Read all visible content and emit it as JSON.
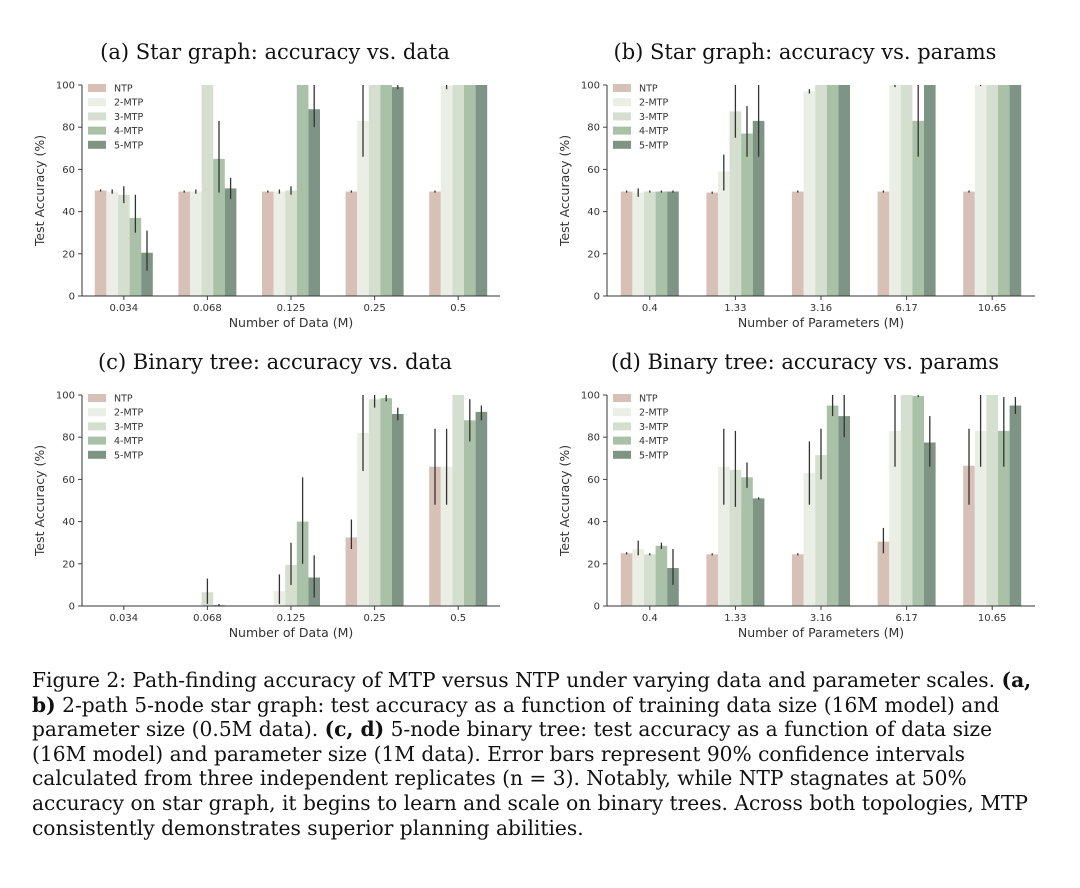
{
  "colors": [
    "#d7c0b6",
    "#eaeee4",
    "#d4dfcf",
    "#a9c1a7",
    "#7e9485"
  ],
  "chart_data": [
    {
      "id": "a",
      "type": "bar",
      "title": "(a) Star graph: accuracy vs. data",
      "xlabel": "Number of Data (M)",
      "ylabel": "Test Accuracy (%)",
      "ylim": [
        0,
        100
      ],
      "yticks": [
        0,
        20,
        40,
        60,
        80,
        100
      ],
      "legend": "top-left",
      "categories": [
        "0.034",
        "0.068",
        "0.125",
        "0.25",
        "0.5"
      ],
      "series": [
        {
          "name": "NTP",
          "values": [
            50,
            49.5,
            49.5,
            49.5,
            49.5
          ],
          "err_low": [
            49.5,
            49,
            49,
            49,
            49
          ],
          "err_high": [
            50.5,
            50,
            50,
            50,
            50
          ]
        },
        {
          "name": "2-MTP",
          "values": [
            49.5,
            49.5,
            49.5,
            83,
            99.5
          ],
          "err_low": [
            48.5,
            48.5,
            48.5,
            66,
            98
          ],
          "err_high": [
            50.5,
            50.5,
            50.5,
            100,
            100
          ]
        },
        {
          "name": "3-MTP",
          "values": [
            48,
            100,
            50,
            100,
            100
          ],
          "err_low": [
            44,
            100,
            48,
            100,
            100
          ],
          "err_high": [
            52,
            100,
            52,
            100,
            100
          ]
        },
        {
          "name": "4-MTP",
          "values": [
            37,
            65,
            100,
            100,
            100
          ],
          "err_low": [
            30,
            49,
            100,
            100,
            100
          ],
          "err_high": [
            48,
            83,
            100,
            100,
            100
          ]
        },
        {
          "name": "5-MTP",
          "values": [
            20.5,
            51,
            88.5,
            99,
            100
          ],
          "err_low": [
            12,
            46,
            80,
            98,
            100
          ],
          "err_high": [
            31,
            56,
            100,
            100,
            100
          ]
        }
      ]
    },
    {
      "id": "b",
      "type": "bar",
      "title": "(b) Star graph: accuracy vs. params",
      "xlabel": "Number of Parameters (M)",
      "ylabel": "Test Accuracy (%)",
      "ylim": [
        0,
        100
      ],
      "yticks": [
        0,
        20,
        40,
        60,
        80,
        100
      ],
      "legend": "top-left",
      "categories": [
        "0.4",
        "1.33",
        "3.16",
        "6.17",
        "10.65"
      ],
      "series": [
        {
          "name": "NTP",
          "values": [
            49.5,
            49,
            49.5,
            49.5,
            49.5
          ],
          "err_low": [
            49,
            48.5,
            49,
            49,
            49
          ],
          "err_high": [
            50,
            49.5,
            50,
            50,
            50
          ]
        },
        {
          "name": "2-MTP",
          "values": [
            49,
            59,
            97,
            100,
            100
          ],
          "err_low": [
            47,
            50,
            96,
            99,
            99.5
          ],
          "err_high": [
            51,
            67,
            98,
            100,
            100
          ]
        },
        {
          "name": "3-MTP",
          "values": [
            49.5,
            87.5,
            100,
            100,
            100
          ],
          "err_low": [
            49,
            75,
            100,
            100,
            100
          ],
          "err_high": [
            50,
            100,
            100,
            100,
            100
          ]
        },
        {
          "name": "4-MTP",
          "values": [
            49.5,
            77,
            100,
            83,
            100
          ],
          "err_low": [
            49,
            66,
            100,
            66,
            100
          ],
          "err_high": [
            50,
            90,
            100,
            100,
            100
          ]
        },
        {
          "name": "5-MTP",
          "values": [
            49.5,
            83,
            100,
            100,
            100
          ],
          "err_low": [
            49,
            66,
            100,
            100,
            100
          ],
          "err_high": [
            50,
            100,
            100,
            100,
            100
          ]
        }
      ]
    },
    {
      "id": "c",
      "type": "bar",
      "title": "(c) Binary tree: accuracy vs. data",
      "xlabel": "Number of Data (M)",
      "ylabel": "Test Accuracy (%)",
      "ylim": [
        0,
        100
      ],
      "yticks": [
        0,
        20,
        40,
        60,
        80,
        100
      ],
      "legend": "top-left",
      "categories": [
        "0.034",
        "0.068",
        "0.125",
        "0.25",
        "0.5"
      ],
      "series": [
        {
          "name": "NTP",
          "values": [
            0,
            0,
            0,
            32.5,
            66
          ],
          "err_low": [
            0,
            0,
            0,
            27,
            48
          ],
          "err_high": [
            0,
            0,
            0,
            41,
            84
          ]
        },
        {
          "name": "2-MTP",
          "values": [
            0,
            0,
            7,
            82,
            66
          ],
          "err_low": [
            0,
            0,
            1,
            64,
            48
          ],
          "err_high": [
            0,
            0,
            15,
            100,
            84
          ]
        },
        {
          "name": "3-MTP",
          "values": [
            0,
            6.5,
            19.5,
            98,
            100
          ],
          "err_low": [
            0,
            1,
            10,
            94,
            100
          ],
          "err_high": [
            0,
            13,
            30,
            100,
            100
          ]
        },
        {
          "name": "4-MTP",
          "values": [
            0,
            0.5,
            40,
            98.5,
            88
          ],
          "err_low": [
            0,
            0,
            20,
            97,
            78
          ],
          "err_high": [
            0,
            1,
            61,
            100,
            98
          ]
        },
        {
          "name": "5-MTP",
          "values": [
            0,
            0,
            13.5,
            91,
            92
          ],
          "err_low": [
            0,
            0,
            4,
            88,
            88
          ],
          "err_high": [
            0,
            0,
            24,
            94,
            95
          ]
        }
      ]
    },
    {
      "id": "d",
      "type": "bar",
      "title": "(d) Binary tree: accuracy vs. params",
      "xlabel": "Number of Parameters (M)",
      "ylabel": "Test Accuracy (%)",
      "ylim": [
        0,
        100
      ],
      "yticks": [
        0,
        20,
        40,
        60,
        80,
        100
      ],
      "legend": "top-left",
      "categories": [
        "0.4",
        "1.33",
        "3.16",
        "6.17",
        "10.65"
      ],
      "series": [
        {
          "name": "NTP",
          "values": [
            25,
            24.5,
            24.5,
            30.5,
            66.5
          ],
          "err_low": [
            24.5,
            24,
            24,
            25,
            48
          ],
          "err_high": [
            25.5,
            25,
            25,
            37,
            84
          ]
        },
        {
          "name": "2-MTP",
          "values": [
            27,
            66,
            63,
            83,
            83
          ],
          "err_low": [
            24,
            48,
            48,
            66,
            66
          ],
          "err_high": [
            31,
            84,
            78,
            100,
            100
          ]
        },
        {
          "name": "3-MTP",
          "values": [
            24.5,
            64.5,
            71.5,
            100,
            100
          ],
          "err_low": [
            24,
            47,
            60,
            100,
            100
          ],
          "err_high": [
            25,
            83,
            84,
            100,
            100
          ]
        },
        {
          "name": "4-MTP",
          "values": [
            28.5,
            61,
            95,
            99.5,
            83
          ],
          "err_low": [
            27,
            56,
            90,
            99,
            66
          ],
          "err_high": [
            30,
            68,
            100,
            100,
            99
          ]
        },
        {
          "name": "5-MTP",
          "values": [
            18,
            51,
            90,
            77.5,
            95
          ],
          "err_low": [
            10,
            50.5,
            80,
            66,
            91
          ],
          "err_high": [
            27,
            51.5,
            100,
            90,
            99
          ]
        }
      ]
    }
  ],
  "caption": {
    "lead": "Figure 2: Path-finding accuracy of MTP versus NTP under varying data and parameter scales.",
    "label_ab": "(a, b)",
    "text_ab": "2-path 5-node star graph: test accuracy as a function of training data size (16M model) and parameter size (0.5M data).",
    "label_cd": "(c, d)",
    "text_cd": "5-node binary tree: test accuracy as a function of data size (16M model) and parameter size (1M data). Error bars represent 90% confidence intervals calculated from three independent replicates (n = 3). Notably, while NTP stagnates at 50% accuracy on star graph, it begins to learn and scale on binary trees. Across both topologies, MTP consistently demonstrates superior planning abilities."
  }
}
